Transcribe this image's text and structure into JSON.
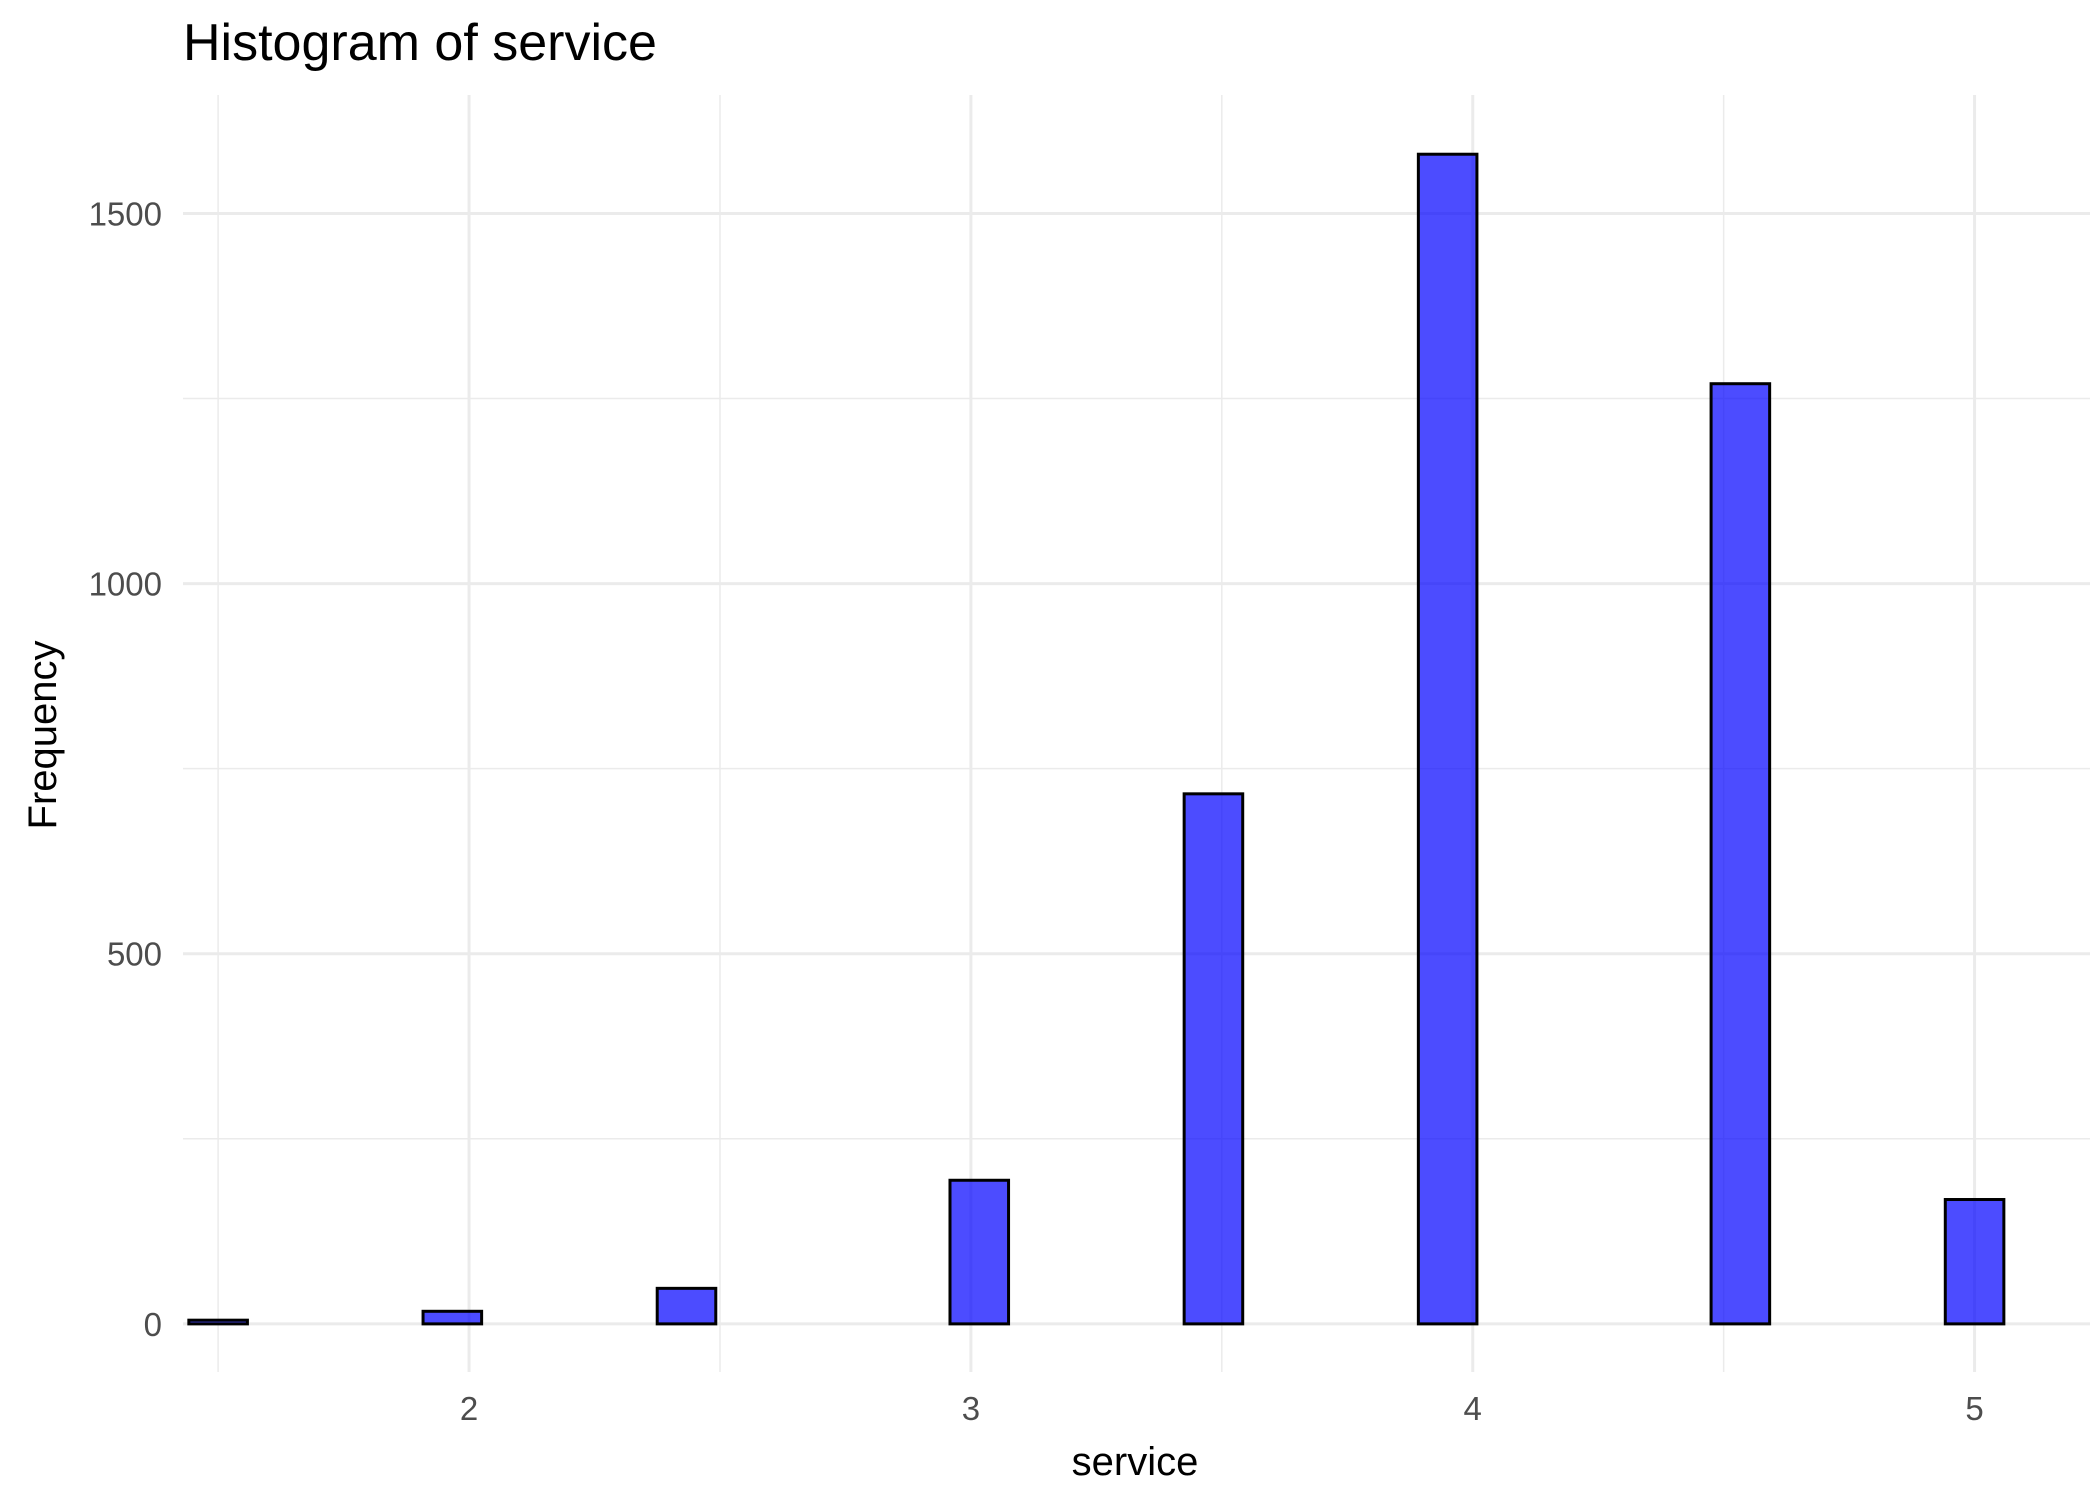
{
  "chart_data": {
    "type": "bar",
    "title": "Histogram of service",
    "xlabel": "service",
    "ylabel": "Frequency",
    "xlim": [
      1.43,
      5.23
    ],
    "ylim": [
      -65,
      1660
    ],
    "x_ticks": [
      2,
      3,
      4,
      5
    ],
    "x_tick_labels": [
      "2",
      "3",
      "4",
      "5"
    ],
    "y_ticks": [
      0,
      500,
      1000,
      1500
    ],
    "y_tick_labels": [
      "0",
      "500",
      "1000",
      "1500"
    ],
    "bin_width": 0.1167,
    "bins": [
      {
        "x": 1.5,
        "count": 5
      },
      {
        "x": 1.6167,
        "count": 0
      },
      {
        "x": 1.7333,
        "count": 0
      },
      {
        "x": 1.85,
        "count": 0
      },
      {
        "x": 1.9667,
        "count": 17
      },
      {
        "x": 2.0833,
        "count": 0
      },
      {
        "x": 2.2,
        "count": 0
      },
      {
        "x": 2.3167,
        "count": 0
      },
      {
        "x": 2.4333,
        "count": 48
      },
      {
        "x": 2.55,
        "count": 0
      },
      {
        "x": 2.6667,
        "count": 0
      },
      {
        "x": 2.7833,
        "count": 0
      },
      {
        "x": 2.9,
        "count": 0
      },
      {
        "x": 3.0167,
        "count": 194
      },
      {
        "x": 3.1333,
        "count": 0
      },
      {
        "x": 3.25,
        "count": 0
      },
      {
        "x": 3.3667,
        "count": 0
      },
      {
        "x": 3.4833,
        "count": 716
      },
      {
        "x": 3.6,
        "count": 0
      },
      {
        "x": 3.7167,
        "count": 0
      },
      {
        "x": 3.8333,
        "count": 0
      },
      {
        "x": 3.95,
        "count": 1580
      },
      {
        "x": 4.0667,
        "count": 0
      },
      {
        "x": 4.1833,
        "count": 0
      },
      {
        "x": 4.3,
        "count": 0
      },
      {
        "x": 4.4167,
        "count": 0
      },
      {
        "x": 4.5333,
        "count": 1270
      },
      {
        "x": 4.65,
        "count": 0
      },
      {
        "x": 4.7667,
        "count": 0
      },
      {
        "x": 4.8833,
        "count": 0
      },
      {
        "x": 5.0,
        "count": 168
      }
    ],
    "fill_color": "#0000ff",
    "fill_opacity": 0.7,
    "outline_color": "#000000",
    "grid": true,
    "legend": "none"
  }
}
